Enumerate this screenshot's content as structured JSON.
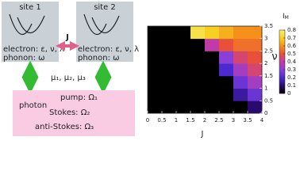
{
  "diagram": {
    "site1": "site 1",
    "site2": "site 2",
    "electron1": "electron: ε, ν, λ",
    "phonon1": "phonon: ω",
    "electron2": "electron: ε, ν, λ",
    "phonon2": "phonon: ω",
    "coupling": "J",
    "mu": "μ₁, μ₂, μ₃",
    "photon": "photon",
    "pump": "pump: Ω₁",
    "stokes": "Stokes: Ω₂",
    "anti_stokes": "anti-Stokes: Ω₃"
  },
  "chart_data": {
    "type": "heatmap",
    "xlabel": "J",
    "ylabel": "ν",
    "colorbar_label": "I",
    "colorbar_label_sub": "M",
    "x": [
      0.25,
      0.75,
      1.25,
      1.75,
      2.25,
      2.75,
      3.25,
      3.75
    ],
    "y": [
      0.25,
      0.75,
      1.25,
      1.75,
      2.25,
      2.75,
      3.25
    ],
    "z": [
      [
        0,
        0,
        0,
        0,
        0,
        0,
        0,
        0.1
      ],
      [
        0,
        0,
        0,
        0,
        0,
        0,
        0.15,
        0.25
      ],
      [
        0,
        0,
        0,
        0,
        0,
        0,
        0.25,
        0.35
      ],
      [
        0,
        0,
        0,
        0,
        0,
        0.2,
        0.35,
        0.45
      ],
      [
        0,
        0,
        0,
        0,
        0,
        0.3,
        0.45,
        0.5
      ],
      [
        0,
        0,
        0,
        0,
        0.4,
        0.5,
        0.55,
        0.55
      ],
      [
        0,
        0,
        0,
        0.75,
        0.7,
        0.65,
        0.6,
        0.6
      ]
    ],
    "cell": 0.5,
    "xlim": [
      0,
      4
    ],
    "xticks": [
      0,
      0.5,
      1,
      1.5,
      2,
      2.5,
      3,
      3.5,
      4
    ],
    "ylim": [
      0,
      3.5
    ],
    "yticks": [
      0,
      0.5,
      1,
      1.5,
      2,
      2.5,
      3,
      3.5
    ],
    "zlim": [
      0,
      0.8
    ],
    "zticks": [
      0,
      0.1,
      0.2,
      0.3,
      0.4,
      0.5,
      0.6,
      0.7,
      0.8
    ],
    "colormap": [
      "#000000",
      "#2a0a6e",
      "#4b2ad0",
      "#8a3fd8",
      "#c03aa8",
      "#e8503a",
      "#f5901a",
      "#f8d020",
      "#f8f070"
    ]
  }
}
